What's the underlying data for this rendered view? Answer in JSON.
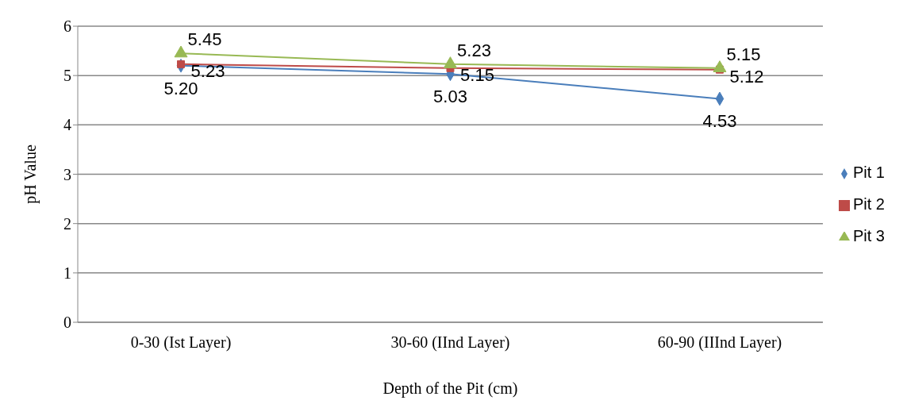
{
  "chart_data": {
    "type": "line",
    "xlabel": "Depth of the Pit (cm)",
    "ylabel": "pH Value",
    "categories": [
      "0-30 (Ist Layer)",
      "30-60 (IInd Layer)",
      "60-90 (IIInd Layer)"
    ],
    "series": [
      {
        "name": "Pit 1",
        "color": "#4a7ebb",
        "marker": "diamond",
        "values": [
          5.2,
          5.03,
          4.53
        ],
        "value_labels": [
          "5.20",
          "5.03",
          "4.53"
        ]
      },
      {
        "name": "Pit 2",
        "color": "#be4b48",
        "marker": "square",
        "values": [
          5.23,
          5.15,
          5.12
        ],
        "value_labels": [
          "5.23",
          "5.15",
          "5.12"
        ]
      },
      {
        "name": "Pit 3",
        "color": "#98b954",
        "marker": "triangle",
        "values": [
          5.45,
          5.23,
          5.15
        ],
        "value_labels": [
          "5.45",
          "5.23",
          "5.15"
        ]
      }
    ],
    "ylim": [
      0,
      6
    ],
    "yticks": [
      0,
      1,
      2,
      3,
      4,
      5,
      6
    ],
    "grid": "y",
    "legend": "right"
  }
}
